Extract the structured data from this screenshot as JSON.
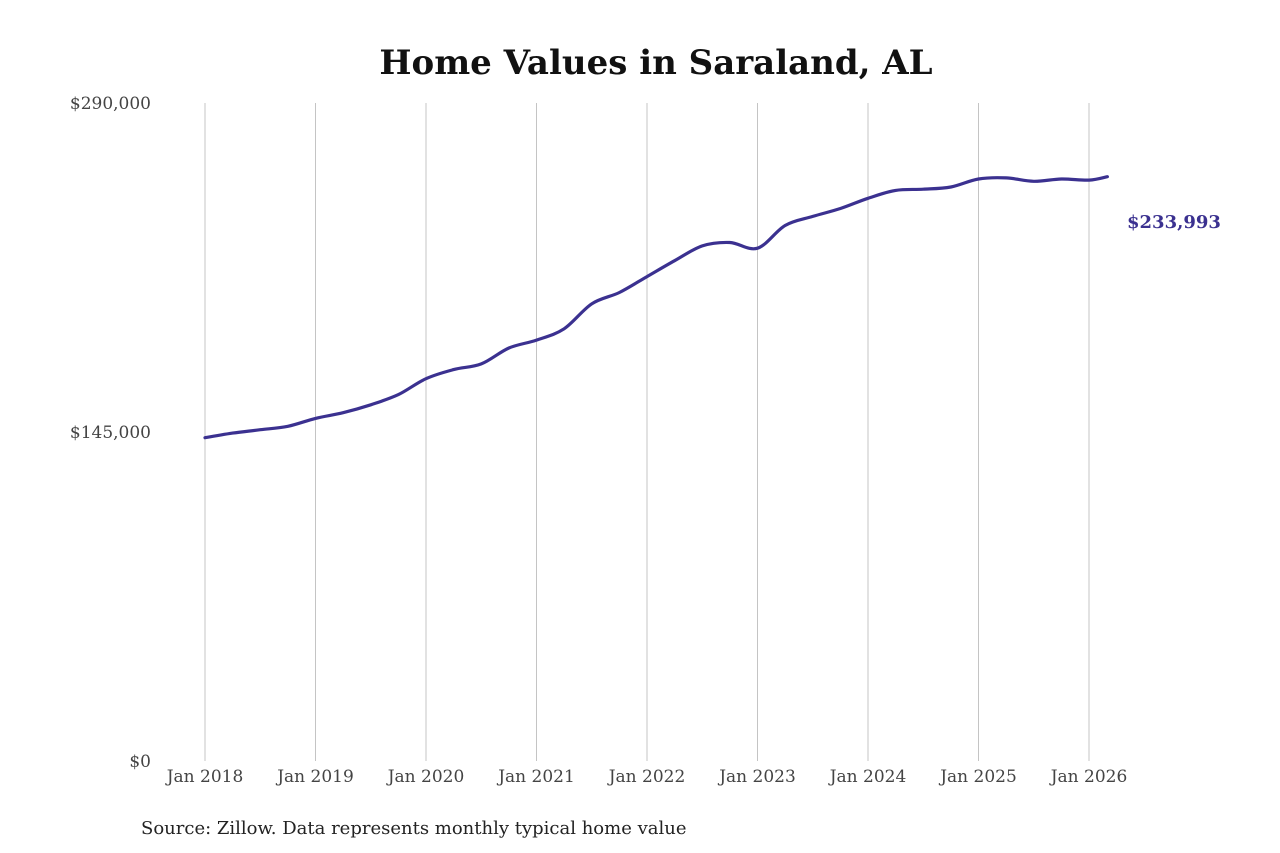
{
  "chart_data": {
    "type": "line",
    "title": "Home Values in Saraland, AL",
    "xlabel": "",
    "ylabel": "",
    "source": "Source: Zillow. Data represents monthly typical home value",
    "x_ticks": [
      {
        "label": "Jan 2018",
        "date": "2018-01"
      },
      {
        "label": "Jan 2019",
        "date": "2019-01"
      },
      {
        "label": "Jan 2020",
        "date": "2020-01"
      },
      {
        "label": "Jan 2021",
        "date": "2021-01"
      },
      {
        "label": "Jan 2022",
        "date": "2022-01"
      },
      {
        "label": "Jan 2023",
        "date": "2023-01"
      },
      {
        "label": "Jan 2024",
        "date": "2024-01"
      },
      {
        "label": "Jan 2025",
        "date": "2025-01"
      },
      {
        "label": "Jan 2026",
        "date": "2026-01"
      }
    ],
    "y_ticks": [
      {
        "label": "$0",
        "value": 0
      },
      {
        "label": "$145,000",
        "value": 145000
      },
      {
        "label": "$290,000",
        "value": 290000
      }
    ],
    "ylim": [
      0,
      290000
    ],
    "xlim": [
      "2018-01",
      "2026-01"
    ],
    "grid": "vertical",
    "line_color": "#3b3190",
    "end_label": "$233,993",
    "series": [
      {
        "x": [
          "2018-01",
          "2018-04",
          "2018-07",
          "2018-10",
          "2019-01",
          "2019-04",
          "2019-07",
          "2019-10",
          "2020-01",
          "2020-04",
          "2020-07",
          "2020-10",
          "2021-01",
          "2021-04",
          "2021-07",
          "2021-10",
          "2022-01",
          "2022-04",
          "2022-07",
          "2022-10",
          "2023-01",
          "2023-04",
          "2023-07",
          "2023-10",
          "2024-01",
          "2024-04",
          "2024-07",
          "2024-10",
          "2025-01",
          "2025-04",
          "2025-07",
          "2025-10",
          "2026-01",
          "2026-03"
        ],
        "values": [
          142500,
          144500,
          146000,
          147500,
          151000,
          153500,
          157000,
          161500,
          168500,
          172500,
          175000,
          182000,
          185500,
          190500,
          201500,
          206500,
          213500,
          220500,
          227000,
          228500,
          226000,
          236000,
          240000,
          243500,
          248000,
          251500,
          252000,
          253000,
          256500,
          257000,
          255500,
          256500,
          256000,
          233993
        ]
      }
    ]
  }
}
